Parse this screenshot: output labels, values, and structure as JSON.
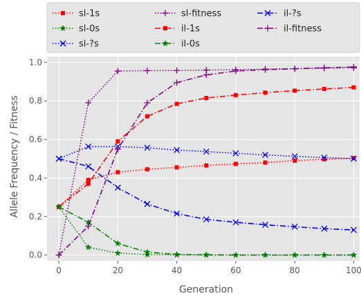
{
  "chart_data": {
    "type": "line",
    "title": "",
    "xlabel": "Generation",
    "ylabel": "Allele Frequency / Fitness",
    "xlim": [
      -4,
      102
    ],
    "ylim": [
      -0.03,
      1.03
    ],
    "xticks": [
      0,
      20,
      40,
      60,
      80,
      100
    ],
    "yticks": [
      0.0,
      0.2,
      0.4,
      0.6,
      0.8,
      1.0
    ],
    "xtick_labels": [
      "0",
      "20",
      "40",
      "60",
      "80",
      "100"
    ],
    "ytick_labels": [
      "0.0",
      "0.2",
      "0.4",
      "0.6",
      "0.8",
      "1.0"
    ],
    "grid": true,
    "background": "#e5e5e5",
    "legend_position": "top",
    "series": [
      {
        "name": "sl-1s",
        "color": "#ff0000",
        "dash": "dotted",
        "marker": "square",
        "x": [
          0,
          10,
          20,
          30,
          40,
          50,
          60,
          70,
          80,
          90,
          100
        ],
        "y": [
          0.25,
          0.39,
          0.43,
          0.445,
          0.455,
          0.465,
          0.473,
          0.48,
          0.49,
          0.497,
          0.503
        ]
      },
      {
        "name": "sl-0s",
        "color": "#008000",
        "dash": "dotted",
        "marker": "star",
        "x": [
          0,
          10,
          20,
          30,
          40,
          50,
          60,
          70,
          80,
          90,
          100
        ],
        "y": [
          0.25,
          0.04,
          0.01,
          0.002,
          0.001,
          0.0,
          0.0,
          0.0,
          0.0,
          0.0,
          0.0
        ]
      },
      {
        "name": "sl-?s",
        "color": "#0000ff",
        "dash": "dotted",
        "marker": "x",
        "x": [
          0,
          10,
          20,
          30,
          40,
          50,
          60,
          70,
          80,
          90,
          100
        ],
        "y": [
          0.5,
          0.563,
          0.563,
          0.557,
          0.545,
          0.537,
          0.528,
          0.52,
          0.512,
          0.506,
          0.5
        ]
      },
      {
        "name": "sl-fitness",
        "color": "#800080",
        "dash": "dotted",
        "marker": "plus",
        "x": [
          0,
          10,
          20,
          30,
          40,
          50,
          60,
          70,
          80,
          90,
          100
        ],
        "y": [
          0.0,
          0.79,
          0.955,
          0.957,
          0.958,
          0.96,
          0.962,
          0.965,
          0.967,
          0.97,
          0.972
        ]
      },
      {
        "name": "il-1s",
        "color": "#ff0000",
        "dash": "dashdot",
        "marker": "square",
        "x": [
          0,
          10,
          20,
          30,
          40,
          50,
          60,
          70,
          80,
          90,
          100
        ],
        "y": [
          0.25,
          0.37,
          0.59,
          0.72,
          0.785,
          0.815,
          0.83,
          0.843,
          0.853,
          0.862,
          0.87
        ]
      },
      {
        "name": "il-0s",
        "color": "#008000",
        "dash": "dashdot",
        "marker": "star",
        "x": [
          0,
          10,
          20,
          30,
          40,
          50,
          60,
          70,
          80,
          90,
          100
        ],
        "y": [
          0.25,
          0.17,
          0.06,
          0.015,
          0.003,
          0.001,
          0.0,
          0.0,
          0.0,
          0.0,
          0.0
        ]
      },
      {
        "name": "il-?s",
        "color": "#0000ff",
        "dash": "dashdot",
        "marker": "x",
        "x": [
          0,
          10,
          20,
          30,
          40,
          50,
          60,
          70,
          80,
          90,
          100
        ],
        "y": [
          0.5,
          0.46,
          0.35,
          0.265,
          0.215,
          0.185,
          0.17,
          0.157,
          0.147,
          0.137,
          0.13
        ]
      },
      {
        "name": "il-fitness",
        "color": "#800080",
        "dash": "dashdot",
        "marker": "plus",
        "x": [
          0,
          10,
          20,
          30,
          40,
          50,
          60,
          70,
          80,
          90,
          100
        ],
        "y": [
          0.0,
          0.15,
          0.55,
          0.79,
          0.895,
          0.935,
          0.955,
          0.962,
          0.967,
          0.972,
          0.976
        ]
      }
    ]
  }
}
